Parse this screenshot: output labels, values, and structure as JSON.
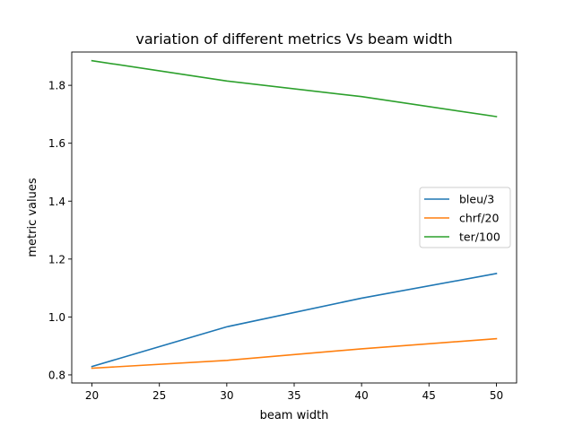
{
  "chart_data": {
    "type": "line",
    "title": "variation of different metrics Vs beam width",
    "xlabel": "beam width",
    "ylabel": "metric values",
    "x": [
      20,
      30,
      40,
      50
    ],
    "xlim": [
      18.5,
      51.5
    ],
    "ylim": [
      0.772,
      1.915
    ],
    "xticks": [
      20,
      25,
      30,
      35,
      40,
      45,
      50
    ],
    "yticks": [
      0.8,
      1.0,
      1.2,
      1.4,
      1.6,
      1.8
    ],
    "ytick_labels": [
      "0.8",
      "1.0",
      "1.2",
      "1.4",
      "1.6",
      "1.8"
    ],
    "grid": false,
    "legend_position": "center-right",
    "series": [
      {
        "name": "bleu/3",
        "color": "#1f77b4",
        "values": [
          0.829,
          0.966,
          1.065,
          1.15
        ]
      },
      {
        "name": "chrf/20",
        "color": "#ff7f0e",
        "values": [
          0.823,
          0.85,
          0.89,
          0.925
        ]
      },
      {
        "name": "ter/100",
        "color": "#2ca02c",
        "values": [
          1.885,
          1.815,
          1.761,
          1.692
        ]
      }
    ]
  }
}
